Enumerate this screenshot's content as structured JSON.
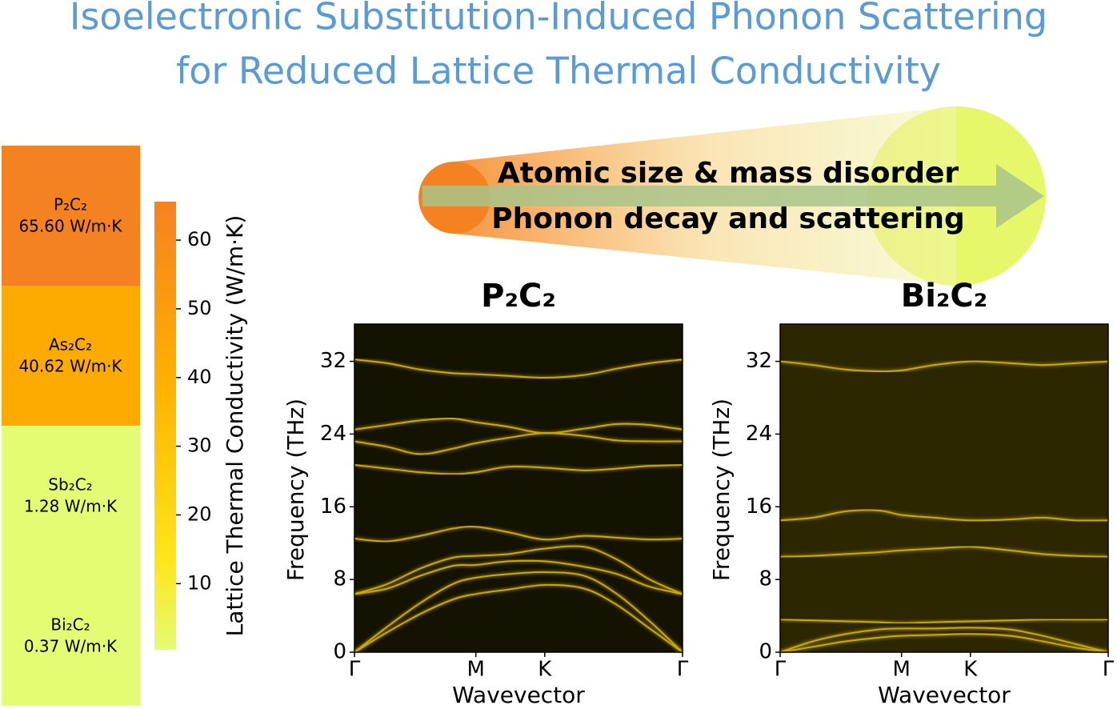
{
  "header": {
    "title_lines": [
      "Isoelectronic Substitution-Induced Phonon Scattering",
      "for Reduced Lattice Thermal Conductivity"
    ]
  },
  "banner": {
    "lines": [
      "Atomic size & mass disorder",
      "Phonon decay and scattering"
    ]
  },
  "chart_data": [
    {
      "type": "colorbar",
      "ylabel": "Lattice Thermal Conductivity (W/m·K)",
      "categories": [
        "P₂C₂",
        "As₂C₂",
        "Sb₂C₂",
        "Bi₂C₂"
      ],
      "values": [
        65.6,
        40.62,
        1.28,
        0.37
      ],
      "value_labels": [
        "65.60 W/m·K",
        "40.62 W/m·K",
        "1.28 W/m·K",
        "0.37 W/m·K"
      ],
      "colors": [
        "#f58220",
        "#fdab00",
        "#e4fb74",
        "#e4fb74"
      ],
      "ylim": [
        0.37,
        65.6
      ],
      "yticks": [
        10,
        20,
        30,
        40,
        50,
        60
      ]
    },
    {
      "type": "line",
      "title": "P₂C₂",
      "xlabel": "Wavevector",
      "ylabel": "Frequency (THz)",
      "background": "#141200",
      "x": [
        0,
        0.1,
        0.2,
        0.3,
        0.37,
        0.47,
        0.58,
        0.7,
        0.8,
        0.9,
        1
      ],
      "xlim": [
        0,
        1
      ],
      "xticks": [
        {
          "value": 0,
          "label": "Γ"
        },
        {
          "value": 0.37,
          "label": "M"
        },
        {
          "value": 0.58,
          "label": "K"
        },
        {
          "value": 1,
          "label": "Γ"
        }
      ],
      "ylim": [
        0,
        36.1
      ],
      "yticks": [
        0,
        8,
        16,
        24,
        32
      ],
      "series": [
        {
          "color": "#c9a800",
          "values": [
            32.2,
            31.8,
            31.1,
            30.7,
            30.6,
            30.4,
            30.2,
            30.5,
            31.2,
            31.8,
            32.2
          ]
        },
        {
          "color": "#c9a800",
          "values": [
            24.5,
            25,
            25.5,
            25.7,
            25.3,
            24.8,
            24.1,
            24.6,
            25.1,
            25,
            24.5
          ]
        },
        {
          "color": "#c9a800",
          "values": [
            23.2,
            22.6,
            21.8,
            22.4,
            23,
            23.6,
            24.1,
            23.8,
            23.3,
            23.2,
            23.2
          ]
        },
        {
          "color": "#c9a800",
          "values": [
            20.6,
            20.2,
            19.8,
            19.6,
            19.8,
            20.4,
            20.3,
            20,
            20.2,
            20.5,
            20.6
          ]
        },
        {
          "color": "#c9a800",
          "values": [
            12.5,
            12.2,
            12.8,
            13.6,
            13.8,
            13.2,
            12.4,
            12.8,
            12.6,
            12.4,
            12.5
          ]
        },
        {
          "color": "#c9a800",
          "values": [
            6.4,
            7.5,
            9.2,
            10.4,
            10.6,
            10.8,
            11.4,
            11.6,
            10.2,
            8,
            6.4
          ]
        },
        {
          "color": "#c9a800",
          "values": [
            6.4,
            7,
            8.4,
            9.5,
            9.6,
            10,
            10,
            9.4,
            8.6,
            7.2,
            6.4
          ]
        },
        {
          "color": "#c9a800",
          "values": [
            0,
            2.8,
            5.4,
            7.5,
            8.2,
            8.6,
            8.8,
            8.4,
            6.4,
            3.4,
            0
          ]
        },
        {
          "color": "#c9a800",
          "values": [
            0,
            2.2,
            4.2,
            5.8,
            6.4,
            6.9,
            7.4,
            7,
            5.2,
            2.6,
            0
          ]
        }
      ]
    },
    {
      "type": "line",
      "title": "Bi₂C₂",
      "xlabel": "Wavevector",
      "ylabel": "Frequency (THz)",
      "background": "#2c2700",
      "x": [
        0,
        0.1,
        0.2,
        0.3,
        0.37,
        0.47,
        0.58,
        0.7,
        0.8,
        0.9,
        1
      ],
      "xlim": [
        0,
        1
      ],
      "xticks": [
        {
          "value": 0,
          "label": "Γ"
        },
        {
          "value": 0.37,
          "label": "M"
        },
        {
          "value": 0.58,
          "label": "K"
        },
        {
          "value": 1,
          "label": "Γ"
        }
      ],
      "ylim": [
        0,
        36.1
      ],
      "yticks": [
        0,
        8,
        16,
        24,
        32
      ],
      "series": [
        {
          "color": "#c9a800",
          "values": [
            32,
            31.6,
            31.1,
            30.9,
            31,
            31.6,
            32,
            31.8,
            31.6,
            31.8,
            32
          ]
        },
        {
          "color": "#c9a800",
          "values": [
            14.5,
            14.8,
            15.5,
            15.6,
            15.1,
            14.8,
            14.5,
            14.6,
            14.8,
            14.5,
            14.5
          ]
        },
        {
          "color": "#c9a800",
          "values": [
            10.5,
            10.6,
            10.8,
            11,
            11.2,
            11.4,
            11.6,
            11.2,
            10.8,
            10.6,
            10.5
          ]
        },
        {
          "color": "#c9a800",
          "values": [
            3.6,
            3.5,
            3.4,
            3.3,
            3.2,
            3.3,
            3.4,
            3.5,
            3.6,
            3.6,
            3.6
          ]
        },
        {
          "color": "#c9a800",
          "values": [
            0,
            1.2,
            2,
            2.5,
            2.6,
            2.6,
            2.7,
            2.5,
            1.8,
            0.9,
            0
          ]
        },
        {
          "color": "#c9a800",
          "values": [
            0,
            0.6,
            1.2,
            1.6,
            1.8,
            1.9,
            2,
            1.8,
            1.2,
            0.5,
            0
          ]
        }
      ]
    }
  ]
}
